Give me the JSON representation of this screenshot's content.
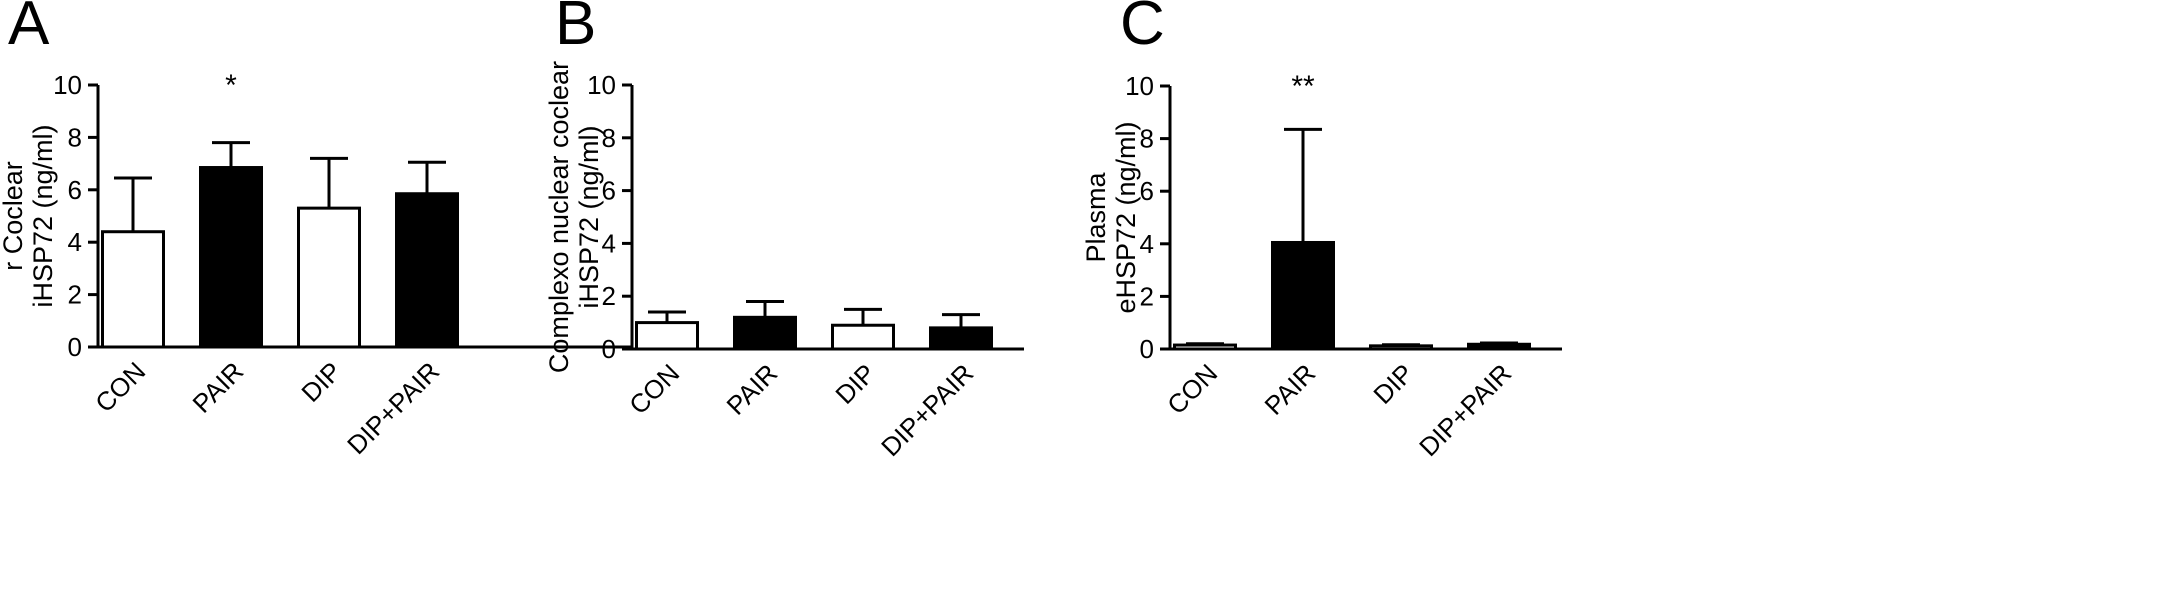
{
  "chart_data": [
    {
      "panel": "A",
      "type": "bar",
      "categories": [
        "CON",
        "PAIR",
        "DIP",
        "DIP+PAIR"
      ],
      "values": [
        4.4,
        6.85,
        5.3,
        5.85
      ],
      "errors": [
        2.05,
        0.95,
        1.9,
        1.2
      ],
      "bar_fill": [
        "white",
        "black",
        "white",
        "black"
      ],
      "significance": [
        "",
        "*",
        "",
        ""
      ],
      "ylabel": [
        "r Coclear",
        "iHSP72 (ng/ml)"
      ],
      "ylim": [
        0,
        10
      ],
      "yticks": [
        "0",
        "2",
        "4",
        "6",
        "8",
        "10"
      ]
    },
    {
      "panel": "B",
      "type": "bar",
      "categories": [
        "CON",
        "PAIR",
        "DIP",
        "DIP+PAIR"
      ],
      "values": [
        1.0,
        1.2,
        0.9,
        0.8
      ],
      "errors": [
        0.4,
        0.6,
        0.6,
        0.5
      ],
      "bar_fill": [
        "white",
        "black",
        "white",
        "black"
      ],
      "significance": [
        "",
        "",
        "",
        ""
      ],
      "ylabel": [
        "Complexo nuclear coclear",
        "iHSP72 (ng/ml)"
      ],
      "ylim": [
        0,
        10
      ],
      "yticks": [
        "0",
        "2",
        "4",
        "6",
        "8",
        "10"
      ]
    },
    {
      "panel": "C",
      "type": "bar",
      "categories": [
        "CON",
        "PAIR",
        "DIP",
        "DIP+PAIR"
      ],
      "values": [
        0.15,
        4.05,
        0.12,
        0.18
      ],
      "errors": [
        0.05,
        4.3,
        0.04,
        0.05
      ],
      "bar_fill": [
        "white",
        "black",
        "white",
        "black"
      ],
      "significance": [
        "",
        "**",
        "",
        ""
      ],
      "ylabel": [
        "Plasma",
        "eHSP72 (ng/ml)"
      ],
      "ylim": [
        0,
        10
      ],
      "yticks": [
        "0",
        "2",
        "4",
        "6",
        "8",
        "10"
      ]
    }
  ]
}
